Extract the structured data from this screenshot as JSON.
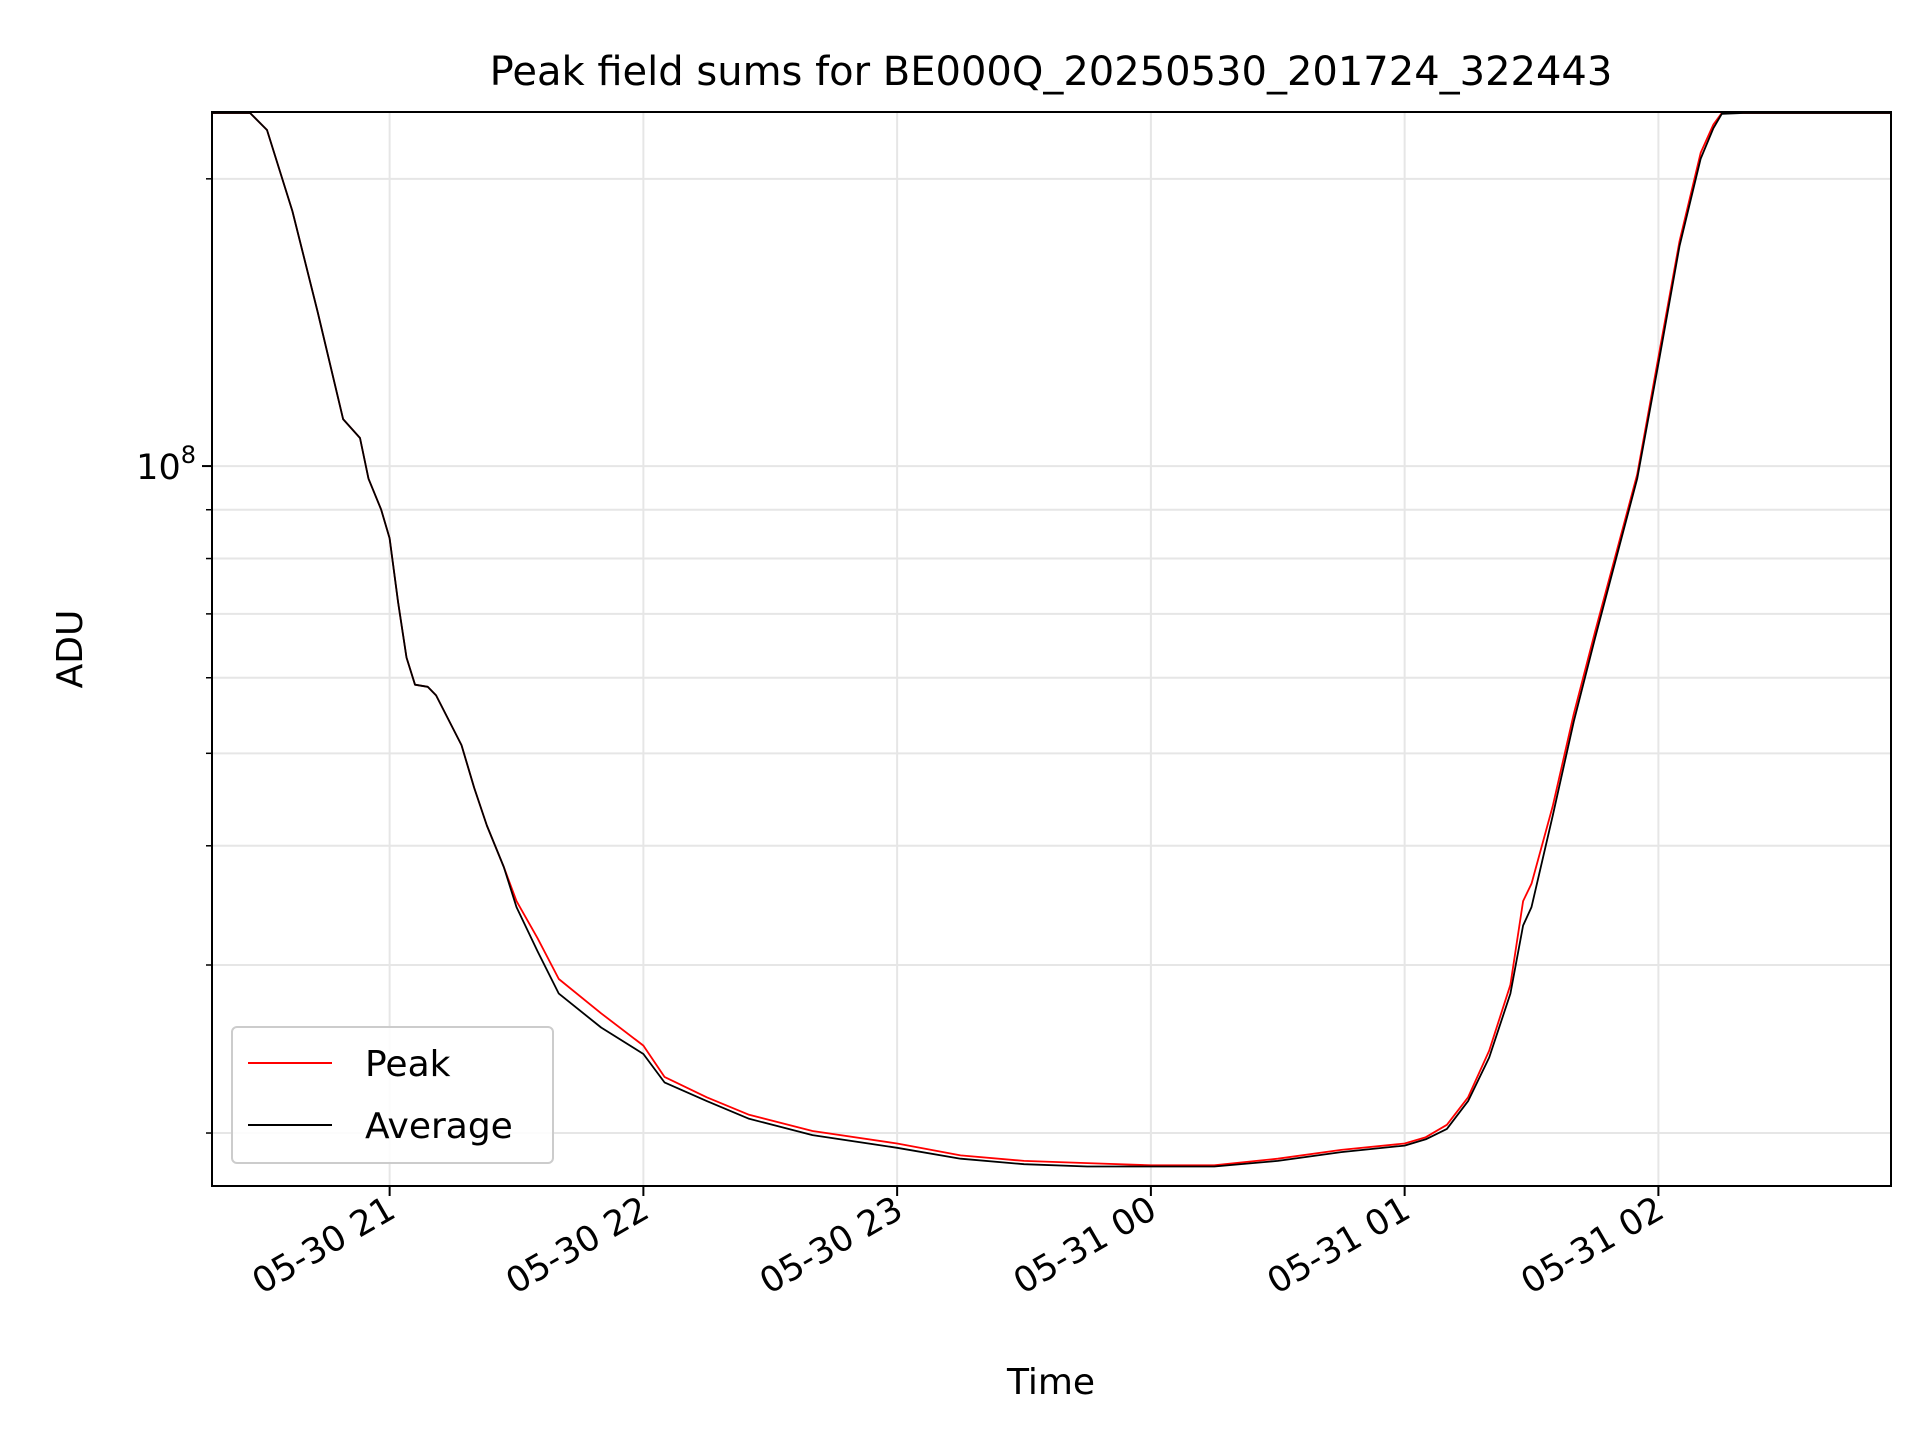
{
  "chart_data": {
    "type": "line",
    "title": "Peak field sums for BE000Q_20250530_201724_322443",
    "xlabel": "Time",
    "ylabel": "ADU",
    "y_scale": "log",
    "ylim": [
      17600000,
      235000000
    ],
    "xlim": [
      "2025-05-30 20:18",
      "2025-05-31 02:55"
    ],
    "x_tick_labels": [
      "05-30 21",
      "05-30 22",
      "05-30 23",
      "05-31 00",
      "05-31 01",
      "05-31 02"
    ],
    "x_tick_values": [
      "2025-05-30 21:00",
      "2025-05-30 22:00",
      "2025-05-30 23:00",
      "2025-05-31 00:00",
      "2025-05-31 01:00",
      "2025-05-31 02:00"
    ],
    "y_tick_labels": [
      {
        "base": "10",
        "exp": "8"
      }
    ],
    "y_tick_values": [
      100000000
    ],
    "y_minor_ticks": [
      20000000,
      30000000,
      40000000,
      50000000,
      60000000,
      70000000,
      80000000,
      90000000,
      200000000
    ],
    "grid": true,
    "legend_position": "lower-left",
    "series": [
      {
        "name": "Peak",
        "color": "#ff0000",
        "x": [
          "2025-05-30 20:18",
          "2025-05-30 20:27",
          "2025-05-30 20:31",
          "2025-05-30 20:37",
          "2025-05-30 20:43",
          "2025-05-30 20:49",
          "2025-05-30 20:53",
          "2025-05-30 20:55",
          "2025-05-30 20:58",
          "2025-05-30 21:00",
          "2025-05-30 21:02",
          "2025-05-30 21:04",
          "2025-05-30 21:06",
          "2025-05-30 21:09",
          "2025-05-30 21:11",
          "2025-05-30 21:17",
          "2025-05-30 21:20",
          "2025-05-30 21:23",
          "2025-05-30 21:27",
          "2025-05-30 21:30",
          "2025-05-30 21:35",
          "2025-05-30 21:40",
          "2025-05-30 21:50",
          "2025-05-30 22:00",
          "2025-05-30 22:05",
          "2025-05-30 22:15",
          "2025-05-30 22:25",
          "2025-05-30 22:40",
          "2025-05-30 23:00",
          "2025-05-30 23:15",
          "2025-05-30 23:30",
          "2025-05-30 23:45",
          "2025-05-31 00:00",
          "2025-05-31 00:15",
          "2025-05-31 00:30",
          "2025-05-31 00:45",
          "2025-05-31 01:00",
          "2025-05-31 01:05",
          "2025-05-31 01:10",
          "2025-05-31 01:15",
          "2025-05-31 01:20",
          "2025-05-31 01:25",
          "2025-05-31 01:28",
          "2025-05-31 01:30",
          "2025-05-31 01:35",
          "2025-05-31 01:40",
          "2025-05-31 01:45",
          "2025-05-31 01:50",
          "2025-05-31 01:55",
          "2025-05-31 02:00",
          "2025-05-31 02:05",
          "2025-05-31 02:10",
          "2025-05-31 02:13",
          "2025-05-31 02:15",
          "2025-05-31 02:20",
          "2025-05-31 02:25",
          "2025-05-31 02:30",
          "2025-05-31 02:35",
          "2025-05-31 02:40",
          "2025-05-31 02:55"
        ],
        "y": [
          235000000,
          235000000,
          225000000,
          185000000,
          145000000,
          112000000,
          107000000,
          97000000,
          90000000,
          84000000,
          72000000,
          63000000,
          59000000,
          58700000,
          57500000,
          51000000,
          46000000,
          42000000,
          38000000,
          35000000,
          32000000,
          29000000,
          26700000,
          24700000,
          22900000,
          21800000,
          20900000,
          20100000,
          19500000,
          18950000,
          18700000,
          18600000,
          18500000,
          18500000,
          18800000,
          19200000,
          19500000,
          19800000,
          20400000,
          21800000,
          24400000,
          28600000,
          35000000,
          36500000,
          44000000,
          55000000,
          67000000,
          81000000,
          98000000,
          130000000,
          172000000,
          213000000,
          228000000,
          235000000,
          235000000,
          235000000,
          235000000,
          235000000,
          235000000,
          235000000
        ]
      },
      {
        "name": "Average",
        "color": "#000000",
        "x": [
          "2025-05-30 20:18",
          "2025-05-30 20:27",
          "2025-05-30 20:31",
          "2025-05-30 20:37",
          "2025-05-30 20:43",
          "2025-05-30 20:49",
          "2025-05-30 20:53",
          "2025-05-30 20:55",
          "2025-05-30 20:58",
          "2025-05-30 21:00",
          "2025-05-30 21:02",
          "2025-05-30 21:04",
          "2025-05-30 21:06",
          "2025-05-30 21:09",
          "2025-05-30 21:11",
          "2025-05-30 21:17",
          "2025-05-30 21:20",
          "2025-05-30 21:23",
          "2025-05-30 21:27",
          "2025-05-30 21:30",
          "2025-05-30 21:35",
          "2025-05-30 21:40",
          "2025-05-30 21:50",
          "2025-05-30 22:00",
          "2025-05-30 22:05",
          "2025-05-30 22:15",
          "2025-05-30 22:25",
          "2025-05-30 22:40",
          "2025-05-30 23:00",
          "2025-05-30 23:15",
          "2025-05-30 23:30",
          "2025-05-30 23:45",
          "2025-05-31 00:00",
          "2025-05-31 00:15",
          "2025-05-31 00:30",
          "2025-05-31 00:45",
          "2025-05-31 01:00",
          "2025-05-31 01:05",
          "2025-05-31 01:10",
          "2025-05-31 01:15",
          "2025-05-31 01:20",
          "2025-05-31 01:25",
          "2025-05-31 01:28",
          "2025-05-31 01:30",
          "2025-05-31 01:35",
          "2025-05-31 01:40",
          "2025-05-31 01:45",
          "2025-05-31 01:50",
          "2025-05-31 01:55",
          "2025-05-31 02:00",
          "2025-05-31 02:05",
          "2025-05-31 02:10",
          "2025-05-31 02:13",
          "2025-05-31 02:15",
          "2025-05-31 02:20",
          "2025-05-31 02:25",
          "2025-05-31 02:30",
          "2025-05-31 02:35",
          "2025-05-31 02:40",
          "2025-05-31 02:55"
        ],
        "y": [
          235000000,
          235000000,
          225000000,
          185000000,
          145000000,
          112000000,
          107000000,
          97000000,
          90000000,
          84000000,
          72000000,
          63000000,
          59000000,
          58700000,
          57500000,
          51000000,
          46000000,
          42000000,
          38000000,
          34500000,
          31000000,
          28000000,
          25800000,
          24200000,
          22600000,
          21600000,
          20700000,
          19900000,
          19300000,
          18800000,
          18550000,
          18450000,
          18450000,
          18450000,
          18700000,
          19100000,
          19400000,
          19700000,
          20200000,
          21600000,
          24000000,
          28000000,
          33000000,
          34500000,
          43000000,
          54000000,
          66000000,
          80000000,
          97000000,
          128000000,
          170000000,
          210000000,
          226000000,
          234000000,
          235000000,
          235000000,
          235000000,
          235000000,
          235000000,
          235000000
        ]
      }
    ]
  }
}
